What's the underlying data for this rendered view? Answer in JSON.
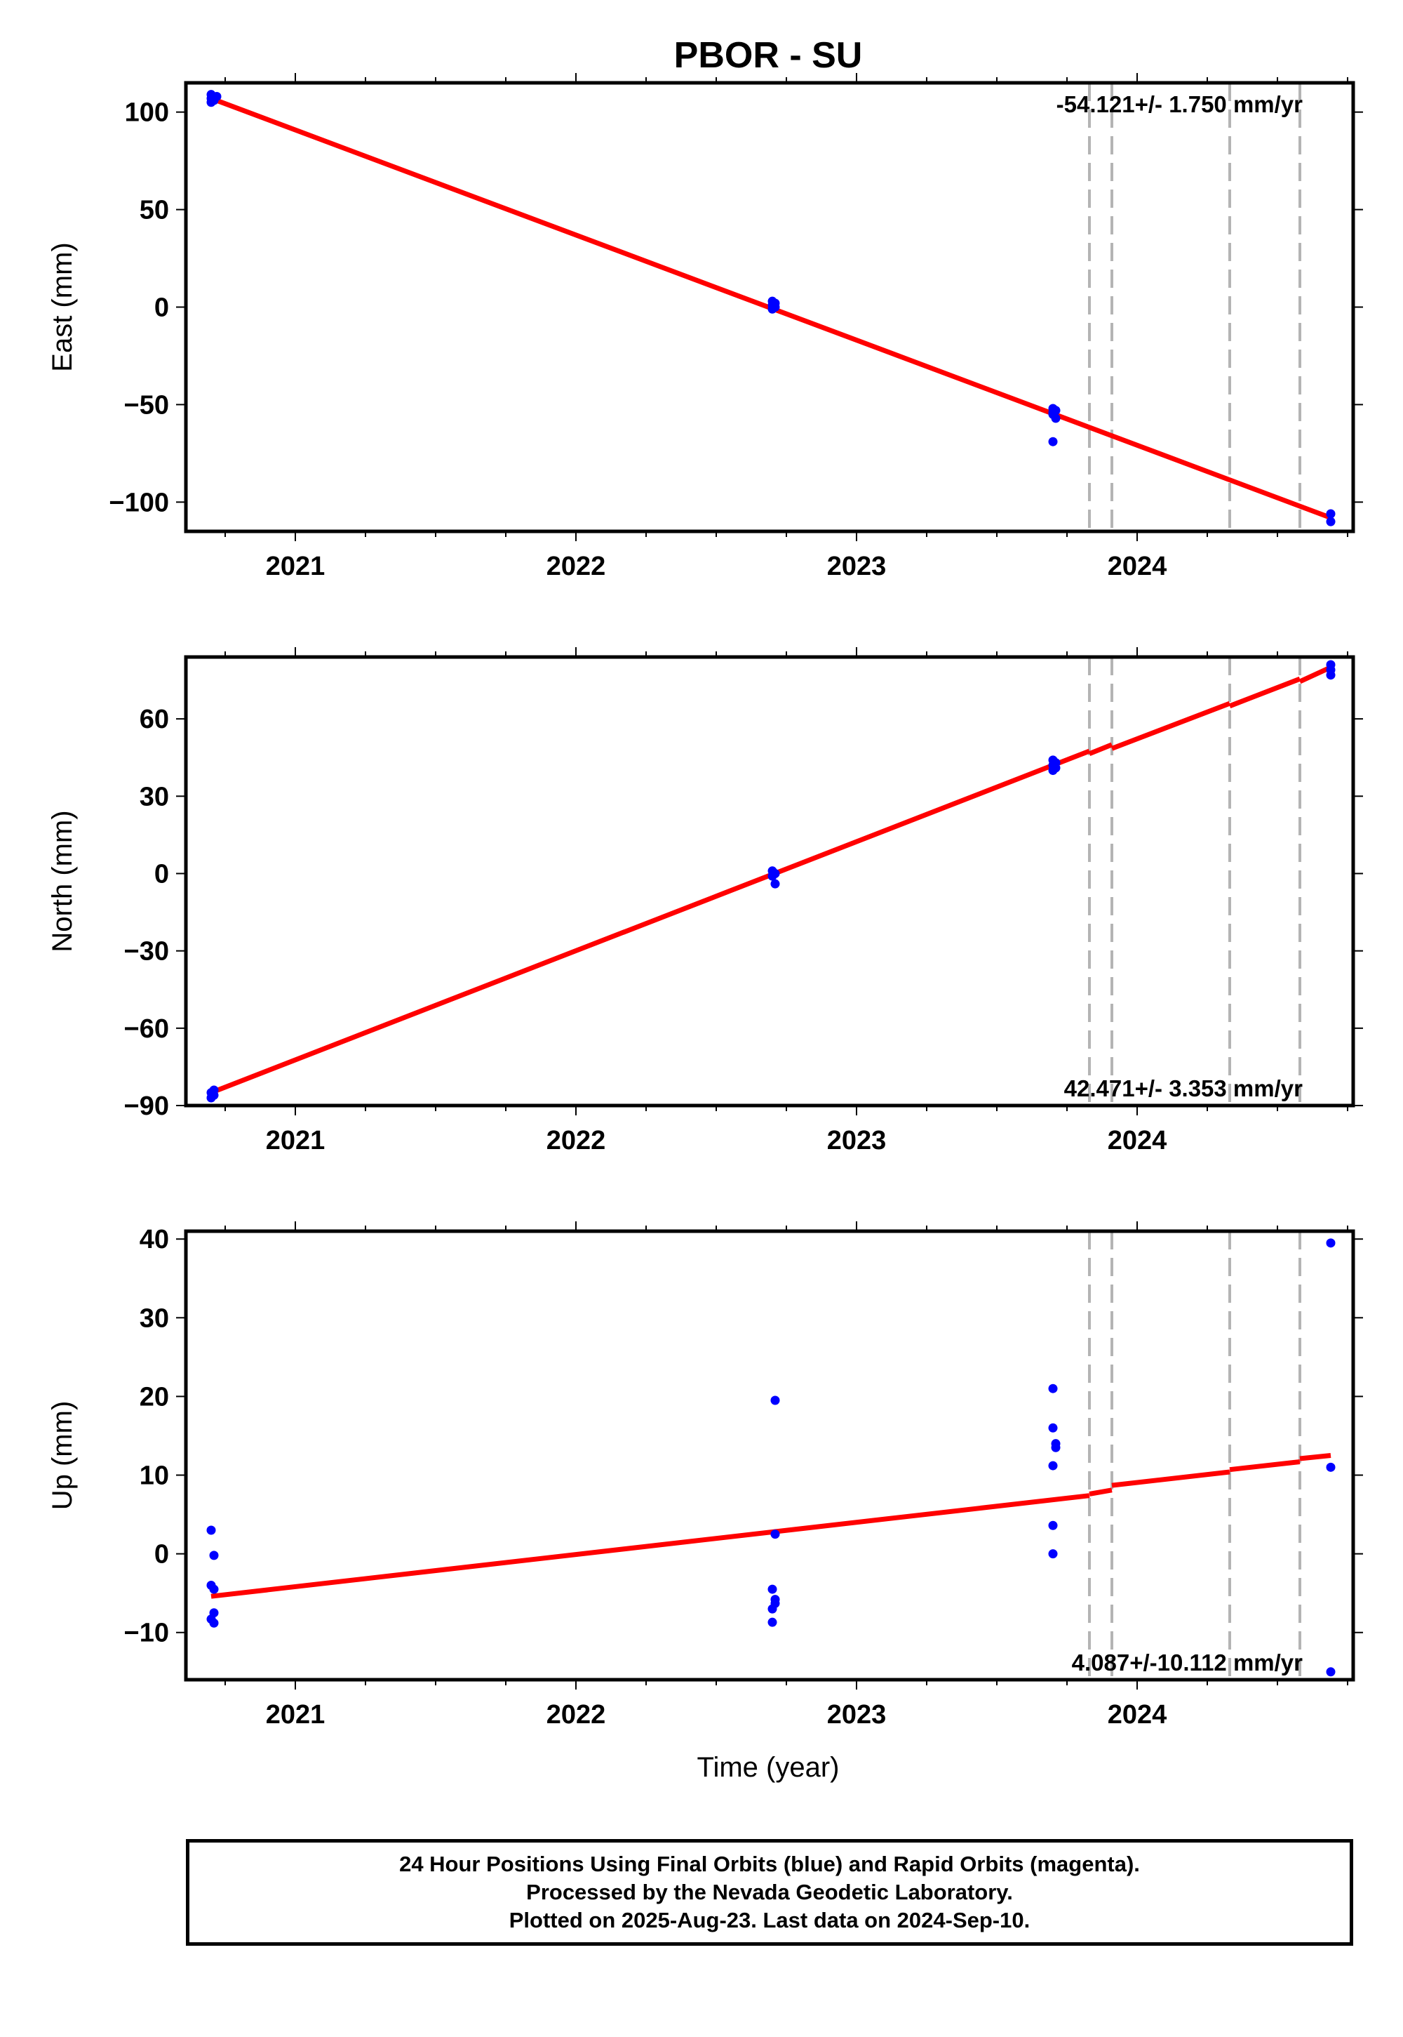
{
  "figure": {
    "title": "PBOR - SU",
    "xlabel": "Time (year)",
    "offset_epochs": [
      2023.83,
      2023.91,
      2024.33,
      2024.58
    ]
  },
  "colors": {
    "data_points": "#0000ff",
    "fit_line": "#ff0000",
    "offset_lines": "#b4b4b4",
    "frame": "#000000"
  },
  "chart_data": [
    {
      "type": "scatter",
      "ylabel": "East (mm)",
      "xlim": [
        2020.61,
        2024.77
      ],
      "ylim": [
        -115,
        115
      ],
      "xticks": [
        2021,
        2022,
        2023,
        2024
      ],
      "yticks": [
        100,
        50,
        0,
        -50,
        -100
      ],
      "ytick_labels": [
        "100",
        "50",
        "0",
        "−50",
        "−100"
      ],
      "rate_label": "-54.121+/- 1.750 mm/yr",
      "rate_position": "top-right",
      "points": [
        [
          2020.7,
          109
        ],
        [
          2020.7,
          107
        ],
        [
          2020.71,
          106
        ],
        [
          2020.7,
          105
        ],
        [
          2020.72,
          108
        ],
        [
          2022.7,
          3
        ],
        [
          2022.7,
          1
        ],
        [
          2022.71,
          0
        ],
        [
          2022.7,
          -1
        ],
        [
          2022.71,
          2
        ],
        [
          2023.7,
          -52
        ],
        [
          2023.7,
          -55
        ],
        [
          2023.71,
          -57
        ],
        [
          2023.7,
          -54
        ],
        [
          2023.71,
          -53
        ],
        [
          2023.7,
          -69
        ],
        [
          2024.69,
          -106
        ],
        [
          2024.69,
          -110
        ]
      ],
      "fit_segments": [
        [
          [
            2020.7,
            107
          ],
          [
            2024.69,
            -108
          ]
        ]
      ]
    },
    {
      "type": "scatter",
      "ylabel": "North (mm)",
      "xlim": [
        2020.61,
        2024.77
      ],
      "ylim": [
        -90,
        84
      ],
      "xticks": [
        2021,
        2022,
        2023,
        2024
      ],
      "yticks": [
        60,
        30,
        0,
        -30,
        -60,
        -90
      ],
      "ytick_labels": [
        "60",
        "30",
        "0",
        "−30",
        "−60",
        "−90"
      ],
      "rate_label": "42.471+/- 3.353 mm/yr",
      "rate_position": "bottom-right",
      "points": [
        [
          2020.71,
          -84
        ],
        [
          2020.7,
          -85
        ],
        [
          2020.71,
          -86
        ],
        [
          2020.7,
          -87
        ],
        [
          2022.7,
          1
        ],
        [
          2022.71,
          0
        ],
        [
          2022.7,
          -1
        ],
        [
          2022.71,
          -4
        ],
        [
          2023.7,
          44
        ],
        [
          2023.71,
          43
        ],
        [
          2023.7,
          42
        ],
        [
          2023.71,
          41
        ],
        [
          2023.7,
          40
        ],
        [
          2024.69,
          81
        ],
        [
          2024.69,
          79
        ],
        [
          2024.69,
          77
        ]
      ],
      "fit_segments": [
        [
          [
            2020.7,
            -85
          ],
          [
            2023.83,
            47.5
          ]
        ],
        [
          [
            2023.83,
            46.5
          ],
          [
            2023.91,
            50
          ]
        ],
        [
          [
            2023.91,
            48.5
          ],
          [
            2024.33,
            66
          ]
        ],
        [
          [
            2024.33,
            65
          ],
          [
            2024.58,
            75.5
          ]
        ],
        [
          [
            2024.58,
            74.5
          ],
          [
            2024.69,
            80
          ]
        ]
      ]
    },
    {
      "type": "scatter",
      "ylabel": "Up (mm)",
      "xlim": [
        2020.61,
        2024.77
      ],
      "ylim": [
        -16,
        41
      ],
      "xticks": [
        2021,
        2022,
        2023,
        2024
      ],
      "yticks": [
        40,
        30,
        20,
        10,
        0,
        -10
      ],
      "ytick_labels": [
        "40",
        "30",
        "20",
        "10",
        "0",
        "−10"
      ],
      "rate_label": "4.087+/-10.112 mm/yr",
      "rate_position": "bottom-right",
      "points": [
        [
          2020.7,
          3
        ],
        [
          2020.71,
          -0.2
        ],
        [
          2020.7,
          -4
        ],
        [
          2020.71,
          -4.5
        ],
        [
          2020.71,
          -7.5
        ],
        [
          2020.7,
          -8.3
        ],
        [
          2020.71,
          -8.8
        ],
        [
          2022.71,
          19.5
        ],
        [
          2022.71,
          2.5
        ],
        [
          2022.7,
          -4.5
        ],
        [
          2022.71,
          -5.8
        ],
        [
          2022.71,
          -6.3
        ],
        [
          2022.7,
          -7
        ],
        [
          2022.7,
          -8.7
        ],
        [
          2023.7,
          21
        ],
        [
          2023.7,
          16
        ],
        [
          2023.71,
          14
        ],
        [
          2023.71,
          13.5
        ],
        [
          2023.7,
          11.2
        ],
        [
          2023.7,
          3.6
        ],
        [
          2023.7,
          0
        ],
        [
          2024.69,
          39.5
        ],
        [
          2024.69,
          11
        ],
        [
          2024.69,
          -15
        ]
      ],
      "fit_segments": [
        [
          [
            2020.7,
            -5.4
          ],
          [
            2023.83,
            7.4
          ]
        ],
        [
          [
            2023.83,
            7.6
          ],
          [
            2023.91,
            8.1
          ]
        ],
        [
          [
            2023.91,
            8.7
          ],
          [
            2024.33,
            10.4
          ]
        ],
        [
          [
            2024.33,
            10.7
          ],
          [
            2024.58,
            11.7
          ]
        ],
        [
          [
            2024.58,
            12.1
          ],
          [
            2024.69,
            12.5
          ]
        ]
      ]
    }
  ],
  "footer": {
    "line1": "24 Hour Positions Using Final Orbits (blue) and Rapid Orbits (magenta).",
    "line2": "Processed by the Nevada Geodetic Laboratory.",
    "line3": "Plotted on 2025-Aug-23. Last data on 2024-Sep-10."
  }
}
